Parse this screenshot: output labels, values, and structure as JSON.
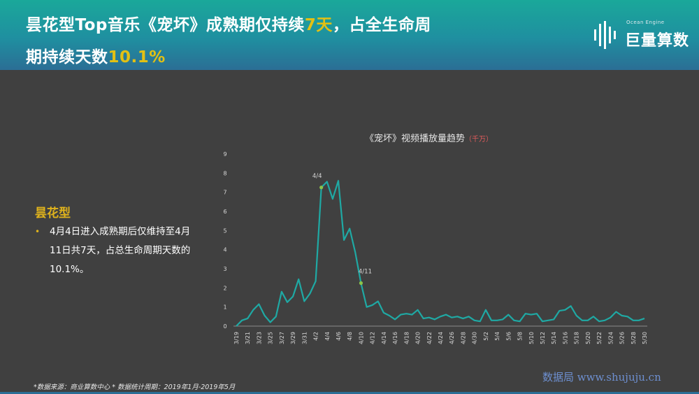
{
  "header": {
    "line1_a": "昙花型Top音乐《宠坏》成熟期仅持续",
    "line1_hl": "7天",
    "line1_b": "，占全生命周",
    "line2_a": "期持续天数",
    "line2_hl": "10.1%"
  },
  "logo": {
    "sub": "Ocean Engine",
    "main": "巨量算数"
  },
  "sidebar": {
    "title": "昙花型",
    "bullet": "•",
    "text": "4月4日进入成熟期后仅维持至4月11日共7天，占总生命周期天数的10.1%。"
  },
  "chart_data": {
    "type": "line",
    "title": "《宠坏》视频播放量趋势",
    "unit": "（千万）",
    "ylim": [
      0,
      9
    ],
    "yticks": [
      "0",
      "1",
      "2",
      "3",
      "4",
      "5",
      "6",
      "7",
      "8",
      "9"
    ],
    "xtick_labels": [
      "3/19",
      "3/21",
      "3/23",
      "3/25",
      "3/27",
      "3/29",
      "3/31",
      "4/2",
      "4/4",
      "4/6",
      "4/8",
      "4/10",
      "4/12",
      "4/14",
      "4/16",
      "4/18",
      "4/20",
      "4/22",
      "4/24",
      "4/26",
      "4/28",
      "4/30",
      "5/2",
      "5/4",
      "5/6",
      "5/8",
      "5/10",
      "5/12",
      "5/14",
      "5/16",
      "5/18",
      "5/20",
      "5/22",
      "5/24",
      "5/26",
      "5/28",
      "5/30"
    ],
    "values": [
      0.0,
      0.3,
      0.4,
      0.85,
      1.15,
      0.55,
      0.2,
      0.5,
      1.8,
      1.25,
      1.55,
      2.45,
      1.3,
      1.7,
      2.35,
      7.25,
      7.55,
      6.65,
      7.6,
      4.5,
      5.1,
      3.85,
      2.25,
      1.0,
      1.1,
      1.3,
      0.7,
      0.55,
      0.35,
      0.6,
      0.65,
      0.6,
      0.85,
      0.4,
      0.45,
      0.35,
      0.5,
      0.6,
      0.45,
      0.5,
      0.4,
      0.5,
      0.3,
      0.25,
      0.85,
      0.3,
      0.3,
      0.35,
      0.6,
      0.3,
      0.25,
      0.65,
      0.6,
      0.65,
      0.25,
      0.3,
      0.35,
      0.8,
      0.85,
      1.05,
      0.55,
      0.3,
      0.3,
      0.5,
      0.25,
      0.3,
      0.45,
      0.75,
      0.55,
      0.5,
      0.3,
      0.3,
      0.4
    ],
    "annotations": [
      {
        "label": "4/4",
        "index": 15
      },
      {
        "label": "4/11",
        "index": 22
      }
    ],
    "line_color": "#1fa9a4",
    "marker_color": "#8bc34a",
    "grid": false
  },
  "footer": "*数据来源：商业算数中心 * 数据统计周期：2019年1月-2019年5月",
  "watermark": "数据局 www.shujuju.cn"
}
